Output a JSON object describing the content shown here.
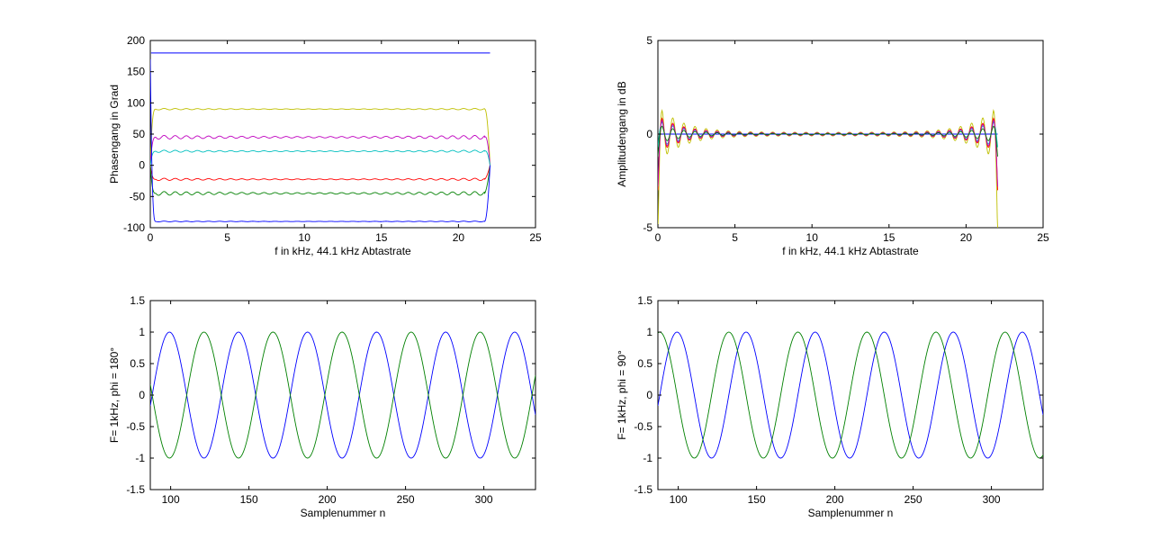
{
  "chart_data": [
    {
      "type": "line",
      "xlabel": "f in kHz, 44.1 kHz Abtastrate",
      "ylabel": "Phasengang in Grad",
      "xlim": [
        0,
        25
      ],
      "ylim": [
        -100,
        200
      ],
      "xticks": [
        0,
        5,
        10,
        15,
        20,
        25
      ],
      "yticks": [
        -100,
        -50,
        0,
        50,
        100,
        150,
        200
      ],
      "grid": false,
      "series": [
        {
          "color": "#0000ff",
          "model": "const",
          "value": 180,
          "x": [
            0.05,
            22.05
          ]
        },
        {
          "color": "#bfbf00",
          "model": "phase",
          "value": 90,
          "ripple": 1,
          "start": 0,
          "x": [
            0,
            22.05
          ]
        },
        {
          "color": "#bf00bf",
          "model": "phase",
          "value": 45,
          "ripple": 2.5,
          "start": 0,
          "x": [
            0,
            22.05
          ]
        },
        {
          "color": "#00bfbf",
          "model": "phase",
          "value": 22.5,
          "ripple": 1.5,
          "start": 0,
          "x": [
            0,
            22.05
          ]
        },
        {
          "color": "#ff0000",
          "model": "phase",
          "value": -22.5,
          "ripple": 1.5,
          "start": 0,
          "x": [
            0,
            22.05
          ]
        },
        {
          "color": "#008000",
          "model": "phase",
          "value": -45,
          "ripple": 2.5,
          "start": 0,
          "x": [
            0,
            22.05
          ]
        },
        {
          "color": "#0000ff",
          "model": "phase",
          "value": -90,
          "ripple": 0.5,
          "start": 170,
          "x": [
            0,
            22.05
          ]
        }
      ]
    },
    {
      "type": "line",
      "xlabel": "f in kHz, 44.1 kHz Abtastrate",
      "ylabel": "Amplitudengang in dB",
      "xlim": [
        0,
        25
      ],
      "ylim": [
        -5,
        5
      ],
      "xticks": [
        0,
        5,
        10,
        15,
        20,
        25
      ],
      "yticks": [
        -5,
        0,
        5
      ],
      "grid": false,
      "series": [
        {
          "color": "#0000ff",
          "model": "const",
          "value": 0,
          "x": [
            0,
            22.05
          ]
        },
        {
          "color": "#bfbf00",
          "model": "amp",
          "ripple": 1.2,
          "edge": -5.5,
          "x": [
            0,
            22.05
          ]
        },
        {
          "color": "#00bfbf",
          "model": "amp",
          "ripple": 0.6,
          "edge": -0.7,
          "x": [
            0,
            22.05
          ]
        },
        {
          "color": "#ff0000",
          "model": "amp",
          "ripple": 0.8,
          "edge": -3.0,
          "x": [
            0,
            22.05
          ]
        },
        {
          "color": "#bf00bf",
          "model": "amp",
          "ripple": 0.7,
          "edge": -2.8,
          "x": [
            0,
            22.05
          ]
        },
        {
          "color": "#008000",
          "model": "amp",
          "ripple": 0.4,
          "edge": -1.2,
          "x": [
            0,
            22.05
          ]
        }
      ]
    },
    {
      "type": "line",
      "xlabel": "Samplenummer n",
      "ylabel": "F= 1kHz, phi = 180°",
      "xlim": [
        87,
        333
      ],
      "ylim": [
        -1.5,
        1.5
      ],
      "xticks": [
        100,
        150,
        200,
        250,
        300
      ],
      "yticks": [
        -1.5,
        -1,
        -0.5,
        0,
        0.5,
        1,
        1.5
      ],
      "yticklabels": [
        "-1.5",
        "-1",
        "-0.5",
        "0",
        "0.5",
        "1",
        "1.5"
      ],
      "grid": false,
      "series": [
        {
          "color": "#0000ff",
          "model": "sine",
          "amplitude": 1,
          "frequency_hz": 1000,
          "sample_rate_hz": 44100,
          "phase_deg": 0,
          "x": [
            87,
            333
          ]
        },
        {
          "color": "#008000",
          "model": "sine",
          "amplitude": 1,
          "frequency_hz": 1000,
          "sample_rate_hz": 44100,
          "phase_deg": 180,
          "x": [
            87,
            333
          ]
        }
      ]
    },
    {
      "type": "line",
      "xlabel": "Samplenummer n",
      "ylabel": "F= 1kHz, phi = 90°",
      "xlim": [
        87,
        333
      ],
      "ylim": [
        -1.5,
        1.5
      ],
      "xticks": [
        100,
        150,
        200,
        250,
        300
      ],
      "yticks": [
        -1.5,
        -1,
        -0.5,
        0,
        0.5,
        1,
        1.5
      ],
      "yticklabels": [
        "-1.5",
        "-1",
        "-0.5",
        "0",
        "0.5",
        "1",
        "1.5"
      ],
      "grid": false,
      "series": [
        {
          "color": "#0000ff",
          "model": "sine",
          "amplitude": 1,
          "frequency_hz": 1000,
          "sample_rate_hz": 44100,
          "phase_deg": 0,
          "x": [
            87,
            333
          ]
        },
        {
          "color": "#008000",
          "model": "sine",
          "amplitude": 1,
          "frequency_hz": 1000,
          "sample_rate_hz": 44100,
          "phase_deg": 90,
          "x": [
            87,
            333
          ]
        }
      ]
    }
  ]
}
